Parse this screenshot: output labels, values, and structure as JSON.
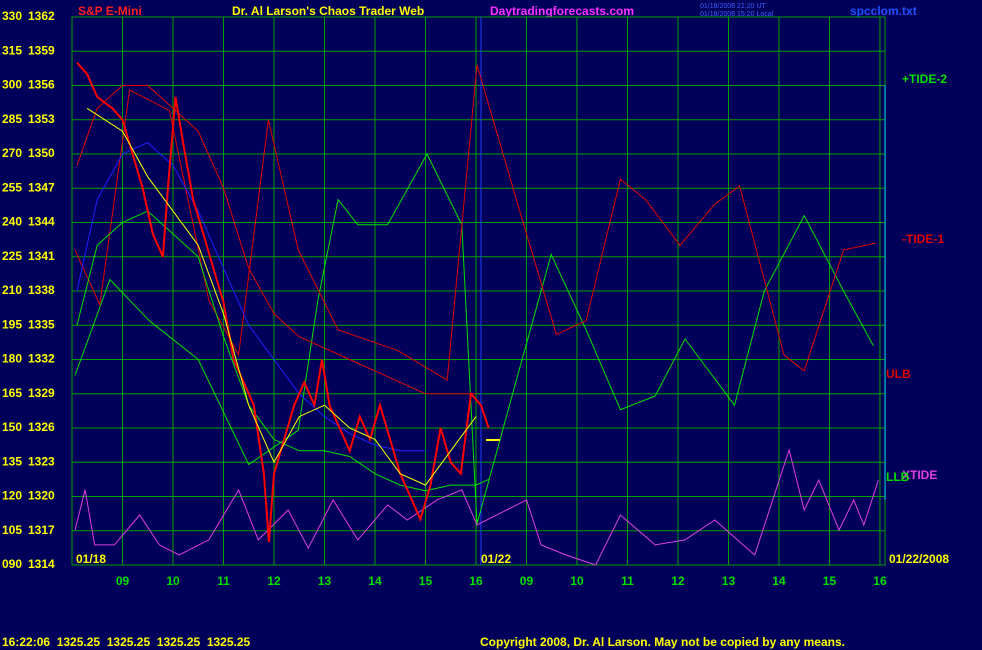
{
  "chart_data": {
    "type": "line",
    "title": "Dr. Al Larson's Chaos Trader Web",
    "subtitle": "S&P E-Mini",
    "site": "Daytradingforecasts.com",
    "file": "spcclom.txt",
    "timestamps": [
      "01/18/2008 21:20 UT",
      "01/18/2008 15:20 Local"
    ],
    "date_labels": [
      "01/18",
      "01/22",
      "01/22/2008"
    ],
    "status": "16:22:06  1325.25  1325.25  1325.25  1325.25",
    "copyright": "Copyright 2008, Dr. Al Larson. May not be copied by any means.",
    "xlim": [
      8,
      24.1
    ],
    "xticks": [
      {
        "value": 9,
        "label": "09"
      },
      10,
      11,
      12,
      13,
      14,
      15,
      16,
      {
        "value": 17,
        "label": "09"
      },
      {
        "value": 18,
        "label": "10"
      },
      {
        "value": 19,
        "label": "11"
      },
      {
        "value": 20,
        "label": "12"
      },
      {
        "value": 21,
        "label": "13"
      },
      {
        "value": 22,
        "label": "14"
      },
      {
        "value": 23,
        "label": "15"
      },
      {
        "value": 24,
        "label": "16"
      }
    ],
    "ylim": [
      90,
      330
    ],
    "yticks": [
      {
        "value": 90,
        "label": "090"
      },
      105,
      120,
      135,
      150,
      165,
      180,
      195,
      210,
      225,
      240,
      255,
      270,
      285,
      300,
      315,
      330
    ],
    "y2lim": [
      1314,
      1362
    ],
    "y2ticks": [
      1314,
      1317,
      1320,
      1323,
      1326,
      1329,
      1332,
      1335,
      1338,
      1341,
      1344,
      1347,
      1350,
      1353,
      1356,
      1359,
      1362
    ],
    "grid": true,
    "series": [
      {
        "name": "+TIDE-2",
        "color": "#00e000",
        "x": [
          8.06,
          8.75,
          9.53,
          10.5,
          11.5,
          12.48,
          12.87,
          13.27,
          13.66,
          14.25,
          15.03,
          15.72,
          16.02,
          16.8,
          17.49,
          18.18,
          18.86,
          19.55,
          20.14,
          21.12,
          21.71,
          22.5,
          23.28,
          23.87
        ],
        "values": [
          173,
          215,
          197,
          180,
          134,
          149,
          206,
          250,
          239,
          239,
          270,
          239,
          108,
          171,
          226,
          193,
          158,
          164,
          189,
          160,
          210,
          243,
          210,
          186
        ]
      },
      {
        "name": "-TIDE-1",
        "color": "#e00000",
        "x": [
          8.06,
          8.55,
          9.14,
          9.93,
          10.71,
          11.3,
          11.89,
          12.48,
          13.27,
          14.45,
          15.43,
          16.02,
          16.8,
          17.59,
          18.18,
          18.86,
          19.36,
          20.04,
          20.73,
          21.22,
          22.1,
          22.5,
          23.28,
          23.91
        ],
        "values": [
          228,
          204,
          298,
          289,
          206,
          182,
          285,
          228,
          193,
          184,
          171,
          309,
          250,
          191,
          197,
          259,
          250,
          230,
          248,
          256,
          182,
          175,
          228,
          231
        ]
      },
      {
        "name": "XTIDE",
        "color": "#e040e0",
        "x": [
          8.06,
          8.26,
          8.45,
          8.84,
          9.34,
          9.73,
          10.12,
          10.71,
          11.3,
          11.69,
          12.28,
          12.68,
          13.17,
          13.66,
          14.25,
          14.64,
          15.23,
          15.72,
          16.02,
          17,
          17.29,
          17.78,
          18.37,
          18.86,
          19.55,
          20.14,
          20.73,
          21.52,
          22.2,
          22.5,
          22.79,
          23.19,
          23.48,
          23.68,
          23.97
        ],
        "values": [
          105.3,
          122.9,
          98.8,
          98.8,
          111.9,
          98.8,
          94.4,
          101,
          122.9,
          101,
          114.1,
          97.4,
          118.5,
          101,
          116.3,
          109.7,
          118.5,
          122.9,
          107.5,
          118.5,
          98.8,
          94.4,
          90,
          111.9,
          98.8,
          101,
          109.7,
          94.4,
          140.4,
          114.1,
          127.2,
          105.3,
          118.5,
          107.5,
          127.2
        ]
      },
      {
        "name": "ULB",
        "color": "#e00000",
        "axis": "y2",
        "x": [
          8.1,
          8.5,
          9,
          9.5,
          10,
          10.5,
          11,
          11.5,
          12,
          12.5,
          13,
          13.5,
          14,
          14.5,
          15,
          15.5,
          16
        ],
        "values": [
          1349,
          1354,
          1356,
          1356,
          1354,
          1352,
          1347,
          1340,
          1336,
          1334,
          1333,
          1332,
          1331,
          1330,
          1329,
          1329,
          1329
        ]
      },
      {
        "name": "LLB",
        "color": "#00e000",
        "axis": "y2",
        "x": [
          8.1,
          8.5,
          9,
          9.5,
          10,
          10.5,
          11,
          11.5,
          12,
          12.5,
          13,
          13.5,
          14,
          14.5,
          15,
          15.5,
          16,
          16.25
        ],
        "values": [
          1335,
          1342,
          1344,
          1345,
          1343,
          1341,
          1334,
          1328,
          1325,
          1324,
          1324,
          1323.5,
          1322,
          1321,
          1320.5,
          1321,
          1321,
          1321.5
        ]
      },
      {
        "color": "#2020ff",
        "axis": "y2",
        "x": [
          8.1,
          8.5,
          9,
          9.5,
          10,
          10.5,
          11,
          11.5,
          12,
          12.5,
          13,
          13.5,
          14,
          14.5,
          15
        ],
        "values": [
          1338,
          1346,
          1350,
          1351,
          1349,
          1345,
          1340,
          1335,
          1332,
          1329,
          1327,
          1325.5,
          1324.5,
          1324,
          1324
        ]
      },
      {
        "color": "#ff0000",
        "axis": "y2",
        "width": 2,
        "x": [
          8.1,
          8.3,
          8.5,
          8.8,
          9,
          9.2,
          9.4,
          9.6,
          9.8,
          9.9,
          10.05,
          10.2,
          10.4,
          10.6,
          10.8,
          11,
          11.2,
          11.4,
          11.6,
          11.8,
          11.9,
          12,
          12.2,
          12.4,
          12.6,
          12.8,
          12.95,
          13.1,
          13.3,
          13.5,
          13.7,
          13.9,
          14.1,
          14.3,
          14.5,
          14.7,
          14.9,
          15.1,
          15.3,
          15.5,
          15.7,
          15.9,
          16.1,
          16.25
        ],
        "values": [
          1358,
          1357,
          1355,
          1354,
          1353,
          1350,
          1347,
          1343,
          1341,
          1347,
          1355,
          1351,
          1346,
          1343,
          1340,
          1337,
          1332,
          1330,
          1328,
          1322,
          1316,
          1322,
          1325,
          1328,
          1330,
          1328,
          1332,
          1328,
          1326,
          1324,
          1327,
          1325,
          1328,
          1325,
          1322,
          1320,
          1318,
          1321,
          1326,
          1323,
          1322,
          1329,
          1328,
          1326
        ]
      },
      {
        "color": "#ffff00",
        "axis": "y2",
        "x": [
          8.3,
          9,
          9.5,
          10,
          10.5,
          11,
          11.5,
          12,
          12.5,
          13,
          13.5,
          14,
          14.5,
          15,
          15.5,
          16
        ],
        "values": [
          1354,
          1352,
          1348,
          1345,
          1342,
          1336,
          1328,
          1323,
          1327,
          1328,
          1326,
          1325,
          1322,
          1321,
          1324,
          1327
        ]
      }
    ]
  }
}
